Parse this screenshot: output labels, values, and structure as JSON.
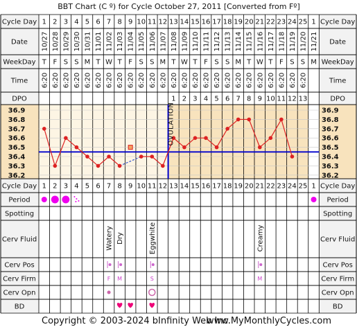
{
  "title": "BBT Chart (C º) for Cycle October 27, 2011  [Converted from Fº]",
  "footer": {
    "copyright": "Copyright © 2003-2024 bInfinity Web Inc.",
    "site": "www.MyMonthlyCycles.com"
  },
  "row_labels": {
    "cycle_day": "Cycle Day",
    "date": "Date",
    "weekday": "WeekDay",
    "time": "Time",
    "dpo": "DPO",
    "period": "Period",
    "spotting": "Spotting",
    "cerv_fluid": "Cerv Fluid",
    "cerv_pos": "Cerv Pos",
    "cerv_firm": "Cerv Firm",
    "cerv_opn": "Cerv Opn",
    "bd": "BD"
  },
  "days": [
    "1",
    "2",
    "3",
    "4",
    "5",
    "6",
    "7",
    "8",
    "9",
    "10",
    "11",
    "12",
    "13",
    "14",
    "15",
    "16",
    "17",
    "18",
    "19",
    "20",
    "21",
    "22",
    "23",
    "24",
    "25",
    "1"
  ],
  "dates": [
    "10/27",
    "10/28",
    "10/29",
    "10/30",
    "10/31",
    "11/01",
    "11/02",
    "11/03",
    "11/04",
    "11/05",
    "11/06",
    "11/07",
    "11/08",
    "11/09",
    "11/10",
    "11/11",
    "11/12",
    "11/13",
    "11/14",
    "11/15",
    "11/16",
    "11/17",
    "11/18",
    "11/19",
    "11/20",
    "11/21"
  ],
  "weekdays": [
    "T",
    "F",
    "S",
    "S",
    "M",
    "T",
    "W",
    "T",
    "F",
    "S",
    "S",
    "M",
    "T",
    "W",
    "T",
    "F",
    "S",
    "S",
    "M",
    "T",
    "W",
    "T",
    "F",
    "S",
    "S",
    "M"
  ],
  "times": [
    "6:20",
    "6:20",
    "6:20",
    "6:20",
    "6:20",
    "6:20",
    "6:20",
    "6:20",
    "6:20",
    "6:20",
    "6:20",
    "6:20",
    "6:20",
    "6:20",
    "6:20",
    "6:20",
    "6:20",
    "6:20",
    "6:20",
    "6:20",
    "6:20",
    "6:20",
    "6:20",
    "6:20",
    "6:20",
    ""
  ],
  "dpo": [
    "",
    "",
    "",
    "",
    "",
    "",
    "",
    "",
    "",
    "",
    "",
    "",
    "1",
    "2",
    "3",
    "4",
    "5",
    "6",
    "7",
    "8",
    "9",
    "10",
    "11",
    "12",
    "13",
    ""
  ],
  "ovulation_label": "OVULATION",
  "cerv_fluid": {
    "7": "Watery",
    "8": "Dry",
    "11": "Eggwhite",
    "21": "Creamy"
  },
  "cerv_firm": {
    "7": "F",
    "8": "M",
    "11": "S",
    "21": "M"
  },
  "colors": {
    "grid_bg": "#fdf5e4",
    "luteal_bg": "#f8e3bd",
    "grid_line": "#c8c8c8",
    "temp_line": "#dd2222",
    "coverline": "#0000cc",
    "ovulation_line": "#0000cc",
    "period": "#ee00ee",
    "bd_heart": "#ee0077",
    "header_bg": "#f2f2f2",
    "label_bg": "#f2f2f2"
  },
  "chart_data": {
    "type": "line",
    "x": [
      1,
      2,
      3,
      4,
      5,
      6,
      7,
      8,
      9,
      10,
      11,
      12,
      13,
      14,
      15,
      16,
      17,
      18,
      19,
      20,
      21,
      22,
      23,
      24,
      25
    ],
    "series": [
      {
        "values": [
          36.7,
          36.3,
          36.6,
          36.5,
          36.4,
          36.3,
          36.4,
          36.3,
          36.5,
          36.4,
          36.4,
          36.3,
          36.6,
          36.5,
          36.6,
          36.6,
          36.5,
          36.7,
          36.8,
          36.8,
          36.5,
          36.6,
          36.8,
          36.4,
          null
        ],
        "discarded_day": 9,
        "dashed_segment": [
          8,
          10
        ]
      }
    ],
    "coverline": 36.45,
    "ovulation_day": 12,
    "ylim": [
      36.2,
      36.9
    ],
    "yticks": [
      "36.9",
      "36.8",
      "36.7",
      "36.6",
      "36.5",
      "36.4",
      "36.3",
      "36.2"
    ],
    "grid": true
  }
}
